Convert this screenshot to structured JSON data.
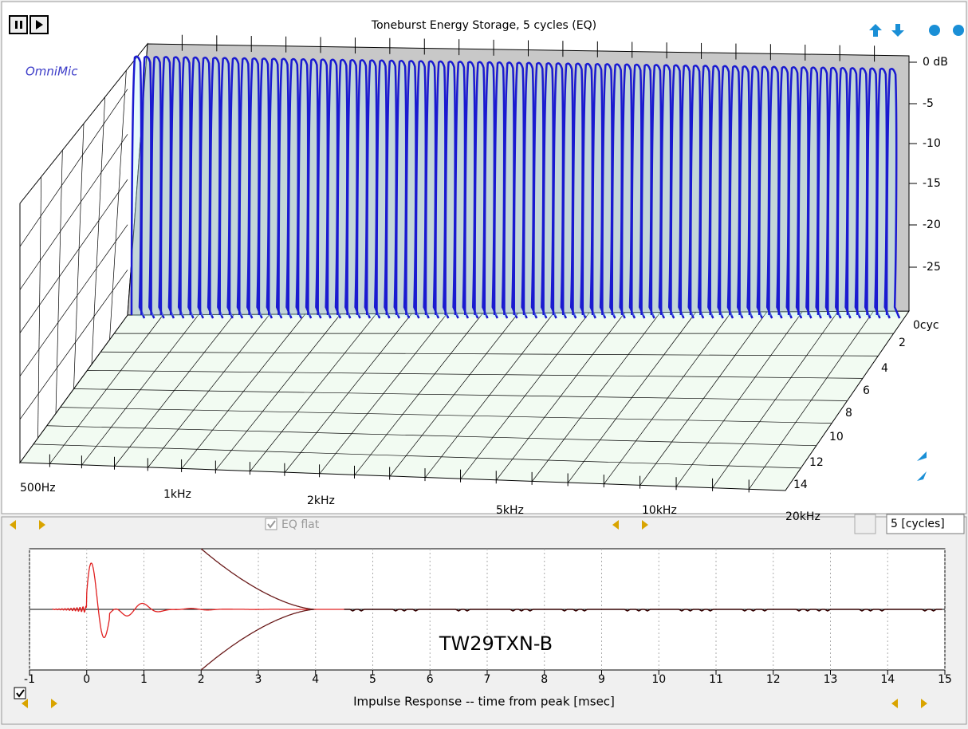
{
  "title": "Toneburst Energy Storage, 5 cycles (EQ)",
  "brand": "OmniMic",
  "db_labels": [
    "0 dB",
    "-5",
    "-10",
    "-15",
    "-20",
    "-25"
  ],
  "cycle_labels": [
    "0cyc",
    "2",
    "4",
    "6",
    "8",
    "10",
    "12",
    "14"
  ],
  "freq_labels": [
    "500Hz",
    "1kHz",
    "2kHz",
    "5kHz",
    "10kHz",
    "20kHz"
  ],
  "eq_flat": "EQ flat",
  "cycles_input": "5 [cycles]",
  "impulse": {
    "title": "Impulse Response  -- time from peak [msec]",
    "label": "TW29TXN-B",
    "xlim": [
      -1,
      15
    ],
    "xticks": [
      -1,
      0,
      1,
      2,
      3,
      4,
      5,
      6,
      7,
      8,
      9,
      10,
      11,
      12,
      13,
      14,
      15
    ]
  }
}
